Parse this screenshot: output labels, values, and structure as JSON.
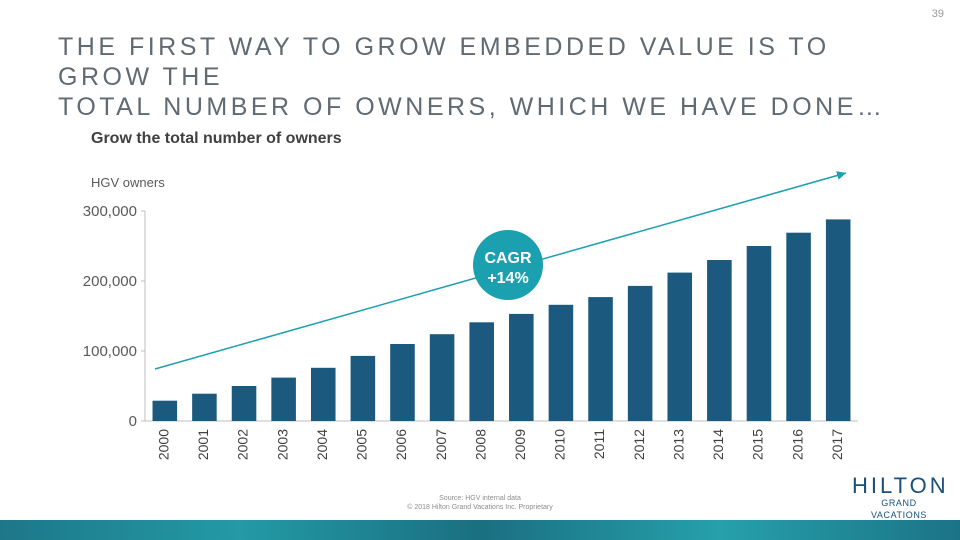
{
  "page_number": "39",
  "headline": [
    "THE FIRST WAY TO GROW EMBEDDED VALUE IS TO GROW THE",
    "TOTAL NUMBER OF OWNERS, WHICH WE HAVE DONE…"
  ],
  "footer": {
    "source": "Source: HGV internal data",
    "copyright": "© 2018 Hilton Grand Vacations Inc. Proprietary"
  },
  "logo": {
    "main": "HILTON",
    "sub": "GRAND VACATIONS"
  },
  "colors": {
    "bar": "#1b5a7e",
    "accent": "#1aa0ae",
    "text": "#5f6a73"
  },
  "chart_data": {
    "type": "bar",
    "title": "Grow the total number of owners",
    "ylabel": "HGV owners",
    "categories": [
      "2000",
      "2001",
      "2002",
      "2003",
      "2004",
      "2005",
      "2006",
      "2007",
      "2008",
      "2009",
      "2010",
      "2011",
      "2012",
      "2013",
      "2014",
      "2015",
      "2016",
      "2017"
    ],
    "values": [
      29000,
      39000,
      50000,
      62000,
      76000,
      93000,
      110000,
      124000,
      141000,
      153000,
      166000,
      177000,
      193000,
      212000,
      230000,
      250000,
      269000,
      288000
    ],
    "ylim": [
      0,
      300000
    ],
    "yticks": [
      0,
      100000,
      200000,
      300000
    ],
    "ytick_labels": [
      "0",
      "100,000",
      "200,000",
      "300,000"
    ],
    "annotations": [
      {
        "line1": "CAGR",
        "line2": "+14%"
      }
    ],
    "trend_arrow": true,
    "grid": false
  }
}
